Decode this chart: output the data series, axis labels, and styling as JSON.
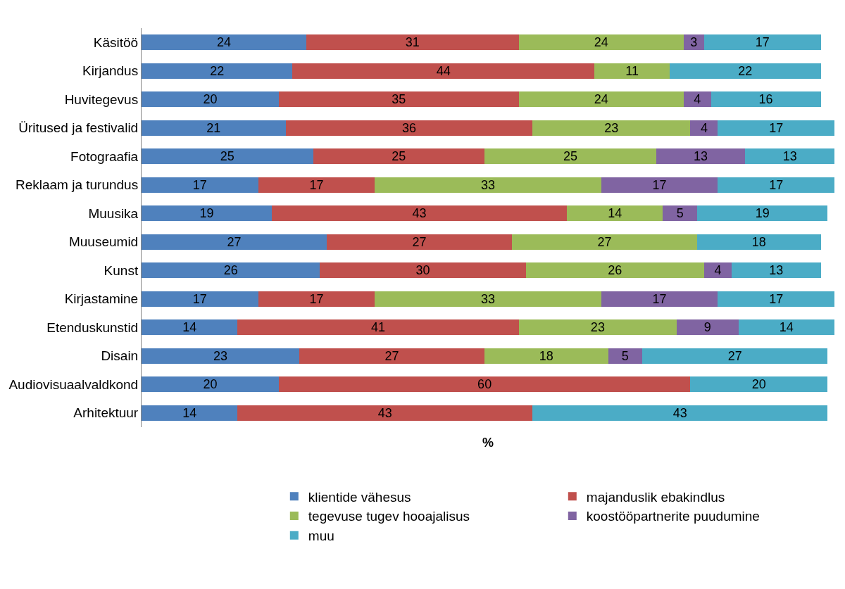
{
  "chart_data": {
    "type": "bar",
    "orientation": "horizontal",
    "stacked": true,
    "data_labels": true,
    "xlabel": "%",
    "xlim": [
      0,
      101
    ],
    "tick_labels": "y",
    "legend": "bottom",
    "categories": [
      "Käsitöö",
      "Kirjandus",
      "Huvitegevus",
      "Üritused ja festivalid",
      "Fotograafia",
      "Reklaam ja turundus",
      "Muusika",
      "Muuseumid",
      "Kunst",
      "Kirjastamine",
      "Etenduskunstid",
      "Disain",
      "Audiovisuaalvaldkond",
      "Arhitektuur"
    ],
    "series": [
      {
        "name": "klientide vähesus",
        "color": "#4f81bd",
        "values": [
          24,
          22,
          20,
          21,
          25,
          17,
          19,
          27,
          26,
          17,
          14,
          23,
          20,
          14
        ]
      },
      {
        "name": "majanduslik ebakindlus",
        "color": "#c0504d",
        "values": [
          31,
          44,
          35,
          36,
          25,
          17,
          43,
          27,
          30,
          17,
          41,
          27,
          60,
          43
        ]
      },
      {
        "name": "tegevuse tugev hooajalisus",
        "color": "#9bbb59",
        "values": [
          24,
          11,
          24,
          23,
          25,
          33,
          14,
          27,
          26,
          33,
          23,
          18,
          null,
          null
        ]
      },
      {
        "name": "koostööpartnerite puudumine",
        "color": "#8064a2",
        "values": [
          3,
          null,
          4,
          4,
          13,
          17,
          5,
          null,
          4,
          17,
          9,
          5,
          null,
          null
        ]
      },
      {
        "name": "muu",
        "color": "#4bacc6",
        "values": [
          17,
          22,
          16,
          17,
          13,
          17,
          19,
          18,
          13,
          17,
          14,
          27,
          20,
          43
        ]
      }
    ]
  }
}
